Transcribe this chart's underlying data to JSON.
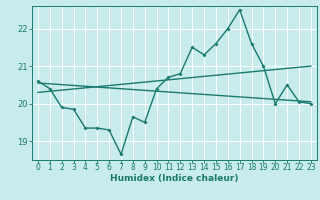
{
  "xlabel": "Humidex (Indice chaleur)",
  "ylabel": "",
  "bg_color": "#c8ebeb",
  "grid_color": "#ffffff",
  "line_color": "#1a7a6e",
  "xlim": [
    -0.5,
    23.5
  ],
  "ylim": [
    18.5,
    22.6
  ],
  "yticks": [
    19,
    20,
    21,
    22
  ],
  "xticks": [
    0,
    1,
    2,
    3,
    4,
    5,
    6,
    7,
    8,
    9,
    10,
    11,
    12,
    13,
    14,
    15,
    16,
    17,
    18,
    19,
    20,
    21,
    22,
    23
  ],
  "series1_x": [
    0,
    1,
    2,
    3,
    4,
    5,
    6,
    7,
    8,
    9,
    10,
    11,
    12,
    13,
    14,
    15,
    16,
    17,
    18,
    19,
    20,
    21,
    22,
    23
  ],
  "series1_y": [
    20.6,
    20.4,
    19.9,
    19.85,
    19.35,
    19.35,
    19.3,
    18.65,
    19.65,
    19.5,
    20.4,
    20.7,
    20.8,
    21.5,
    21.3,
    21.6,
    22.0,
    22.5,
    21.6,
    21.0,
    20.0,
    20.5,
    20.05,
    20.0
  ],
  "series2_x": [
    0,
    23
  ],
  "series2_y": [
    20.55,
    20.05
  ],
  "series3_x": [
    0,
    23
  ],
  "series3_y": [
    20.3,
    21.0
  ],
  "font_size_label": 6.5,
  "font_size_tick": 5.5,
  "line_width": 1.0,
  "marker_size": 2.0
}
